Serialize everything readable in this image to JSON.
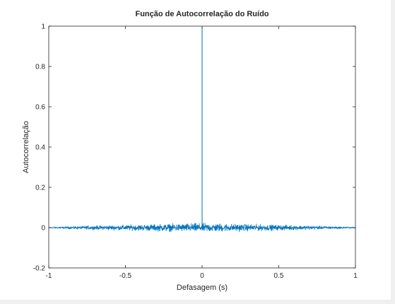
{
  "chart_data": {
    "type": "line",
    "title": "Função de Autocorrelação do Ruído",
    "xlabel": "Defasagem (s)",
    "ylabel": "Autocorrelação",
    "xlim": [
      -1,
      1
    ],
    "ylim": [
      -0.2,
      1
    ],
    "xticks": [
      "-1",
      "-0.5",
      "0",
      "0.5",
      "1"
    ],
    "yticks": [
      "-0.2",
      "0",
      "0.2",
      "0.4",
      "0.6",
      "0.8",
      "1"
    ],
    "grid": false,
    "series": [
      {
        "color": "#0072bd",
        "peak": {
          "x": 0,
          "y": 1
        },
        "noise_envelope": {
          "x": [
            -1,
            -0.75,
            -0.5,
            -0.25,
            0,
            0.25,
            0.5,
            0.75,
            1
          ],
          "amplitude": [
            0.002,
            0.008,
            0.012,
            0.016,
            0.02,
            0.016,
            0.012,
            0.008,
            0.002
          ]
        }
      }
    ]
  }
}
